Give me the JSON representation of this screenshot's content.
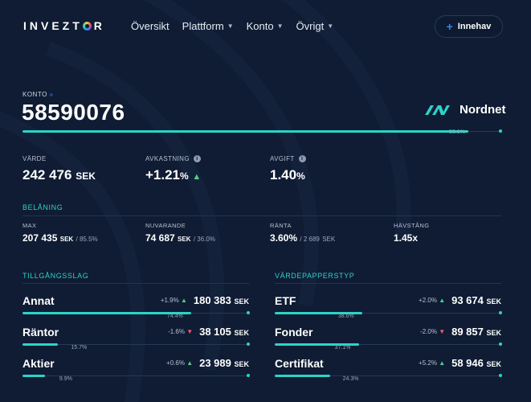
{
  "nav": {
    "logo_pre": "INVEZT",
    "logo_post": "R",
    "items": [
      {
        "label": "Översikt",
        "has_dropdown": false
      },
      {
        "label": "Plattform",
        "has_dropdown": true
      },
      {
        "label": "Konto",
        "has_dropdown": true
      },
      {
        "label": "Övrigt",
        "has_dropdown": true
      }
    ],
    "innehav_button": "Innehav"
  },
  "account": {
    "label": "KONTO",
    "arrows": "»",
    "number": "58590076",
    "broker": "Nordnet",
    "progress_label": "93.1%",
    "progress": 0.931
  },
  "stats": {
    "varde_label": "VÄRDE",
    "varde_value": "242 476",
    "varde_unit": "SEK",
    "avkastning_label": "AVKASTNING",
    "avkastning_value": "+1.21",
    "avkastning_unit": "%",
    "avgift_label": "AVGIFT",
    "avgift_value": "1.40",
    "avgift_unit": "%"
  },
  "belaning": {
    "title": "BELÅNING",
    "max_label": "MAX",
    "max_value": "207 435",
    "max_unit": "SEK",
    "max_sub": "/ 85.5%",
    "nuvarande_label": "NUVARANDE",
    "nuvarande_value": "74 687",
    "nuvarande_unit": "SEK",
    "nuvarande_sub": "/ 36.0%",
    "ranta_label": "RÄNTA",
    "ranta_value": "3.60%",
    "ranta_sub": "/ 2 689",
    "ranta_sub_unit": "SEK",
    "havstang_label": "HÄVSTÅNG",
    "havstang_value": "1.45x"
  },
  "tillgangsslag": {
    "title": "TILLGÅNGSSLAG",
    "rows": [
      {
        "name": "Annat",
        "change": "+1.9%",
        "direction": "up",
        "amount": "180 383",
        "unit": "SEK",
        "pct_label": "74.4%",
        "share": 0.744
      },
      {
        "name": "Räntor",
        "change": "-1.6%",
        "direction": "down",
        "amount": "38 105",
        "unit": "SEK",
        "pct_label": "15.7%",
        "share": 0.157
      },
      {
        "name": "Aktier",
        "change": "+0.6%",
        "direction": "up",
        "amount": "23 989",
        "unit": "SEK",
        "pct_label": "9.9%",
        "share": 0.099
      }
    ]
  },
  "vardepapperstyp": {
    "title": "VÄRDEPAPPERSTYP",
    "rows": [
      {
        "name": "ETF",
        "change": "+2.0%",
        "direction": "up",
        "amount": "93 674",
        "unit": "SEK",
        "pct_label": "38.6%",
        "share": 0.386
      },
      {
        "name": "Fonder",
        "change": "-2.0%",
        "direction": "down",
        "amount": "89 857",
        "unit": "SEK",
        "pct_label": "37.1%",
        "share": 0.371
      },
      {
        "name": "Certifikat",
        "change": "+5.2%",
        "direction": "up",
        "amount": "58 946",
        "unit": "SEK",
        "pct_label": "24.3%",
        "share": 0.243
      }
    ]
  },
  "colors": {
    "background": "#0f1c33",
    "accent": "#2ad4c7",
    "positive": "#4fd18b",
    "negative": "#ef5b6b",
    "button_icon": "#3b82f6"
  }
}
